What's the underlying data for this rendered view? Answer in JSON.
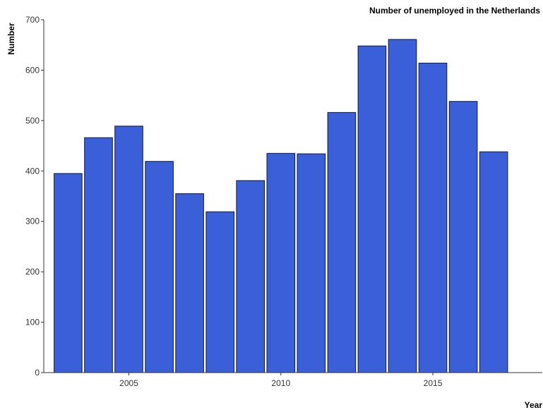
{
  "chart_data": {
    "type": "bar",
    "title": "Number of unemployed in the Netherlands",
    "xlabel": "Year",
    "ylabel": "Number",
    "x": [
      2003,
      2004,
      2005,
      2006,
      2007,
      2008,
      2009,
      2010,
      2011,
      2012,
      2013,
      2014,
      2015,
      2016,
      2017
    ],
    "values": [
      395,
      466,
      489,
      419,
      355,
      319,
      381,
      435,
      434,
      516,
      648,
      661,
      614,
      538,
      438
    ],
    "ylim": [
      0,
      700
    ],
    "yticks": [
      0,
      100,
      200,
      300,
      400,
      500,
      600,
      700
    ],
    "xticks": [
      2005,
      2010,
      2015
    ],
    "colors": {
      "bar_fill": "#3a5fd9",
      "bar_stroke": "#0f1a3a",
      "axis": "#333333"
    },
    "grid": false
  }
}
